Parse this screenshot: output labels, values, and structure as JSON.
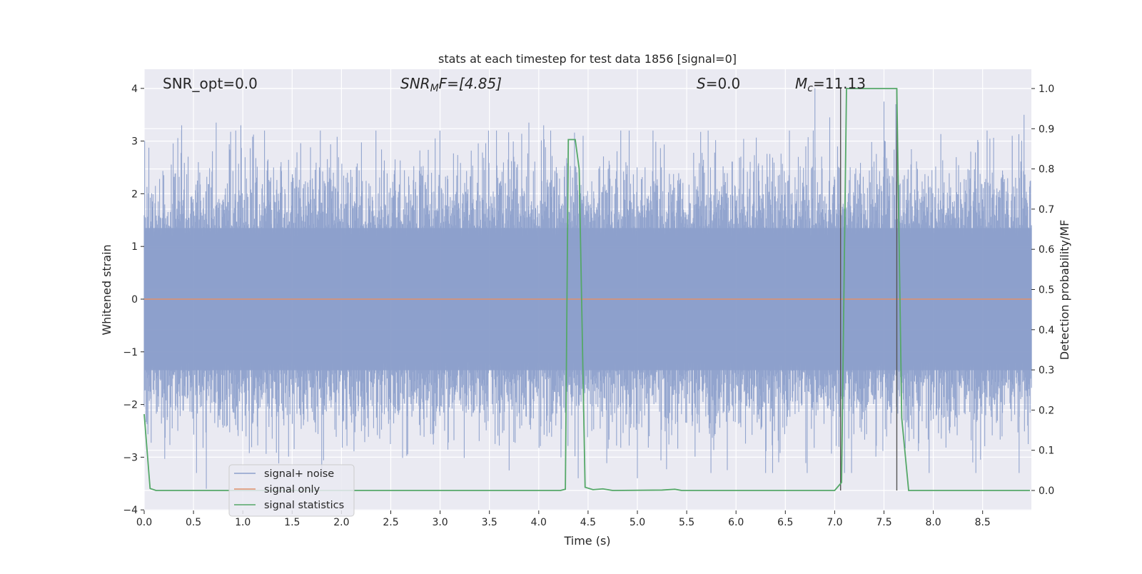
{
  "chart_data": {
    "type": "line",
    "title": "stats at each timestep for test data 1856 [signal=0]",
    "xlabel": "Time (s)",
    "ylabel": "Whitened strain",
    "y2label": "Detection probability/MF",
    "xlim": [
      0.0,
      9.0
    ],
    "ylim": [
      -4.0,
      4.35
    ],
    "y2lim": [
      -0.05,
      1.03
    ],
    "x_ticks": [
      "0.0",
      "0.5",
      "1.0",
      "1.5",
      "2.0",
      "2.5",
      "3.0",
      "3.5",
      "4.0",
      "4.5",
      "5.0",
      "5.5",
      "6.0",
      "6.5",
      "7.0",
      "7.5",
      "8.0",
      "8.5"
    ],
    "y_ticks": [
      "4",
      "3",
      "2",
      "1",
      "0",
      "−1",
      "−2",
      "−3",
      "−4"
    ],
    "y2_ticks": [
      "1.0",
      "0.9",
      "0.8",
      "0.7",
      "0.6",
      "0.5",
      "0.4",
      "0.3",
      "0.2",
      "0.1",
      "0.0"
    ],
    "grid": true,
    "legend_position": "lower-left",
    "annotations": {
      "snr_opt": "SNR_opt=0.0",
      "snr_mf_sym": "SNR",
      "snr_mf_sub": "M",
      "snr_mf_rest": "F=[4.85]",
      "s_sym": "S",
      "s_rest": "=0.0",
      "mc_sym": "M",
      "mc_sub": "c",
      "mc_rest": "=11.13"
    },
    "vertical_markers": [
      7.06,
      7.63
    ],
    "series": [
      {
        "name": "signal+ noise",
        "color": "#8da0cb",
        "description_range": [
          -3.7,
          4.0
        ],
        "peaks": [
          [
            0.38,
            3.3
          ],
          [
            0.73,
            3.35
          ],
          [
            0.98,
            3.3
          ],
          [
            1.22,
            3.2
          ],
          [
            2.95,
            3.05
          ],
          [
            3.9,
            3.35
          ],
          [
            4.05,
            3.3
          ],
          [
            4.45,
            3.1
          ],
          [
            6.95,
            3.45
          ],
          [
            6.8,
            4.0
          ],
          [
            7.5,
            3.75
          ],
          [
            7.62,
            3.7
          ],
          [
            8.8,
            3.1
          ],
          [
            8.92,
            3.5
          ]
        ],
        "troughs": [
          [
            0.63,
            -3.6
          ],
          [
            1.8,
            -3.3
          ],
          [
            3.7,
            -3.25
          ],
          [
            4.4,
            -3.4
          ],
          [
            5.0,
            -3.4
          ],
          [
            6.3,
            -3.3
          ],
          [
            7.1,
            -3.3
          ],
          [
            8.4,
            -3.1
          ],
          [
            8.87,
            -3.3
          ]
        ]
      },
      {
        "name": "signal only",
        "color": "#e0906a",
        "constant": 0.0
      },
      {
        "name": "signal statistics",
        "color": "#55a868",
        "axis": "right",
        "x": [
          0.0,
          0.06,
          0.12,
          4.22,
          4.27,
          4.3,
          4.37,
          4.41,
          4.47,
          4.55,
          4.65,
          4.75,
          5.25,
          5.38,
          5.45,
          7.0,
          7.07,
          7.12,
          7.63,
          7.68,
          7.75,
          8.98
        ],
        "values": [
          0.19,
          0.005,
          0.0,
          0.0,
          0.003,
          0.873,
          0.873,
          0.8,
          0.008,
          0.002,
          0.004,
          0.0,
          0.001,
          0.003,
          0.0,
          0.0,
          0.02,
          1.0,
          1.0,
          0.18,
          0.0,
          0.0
        ]
      }
    ]
  }
}
